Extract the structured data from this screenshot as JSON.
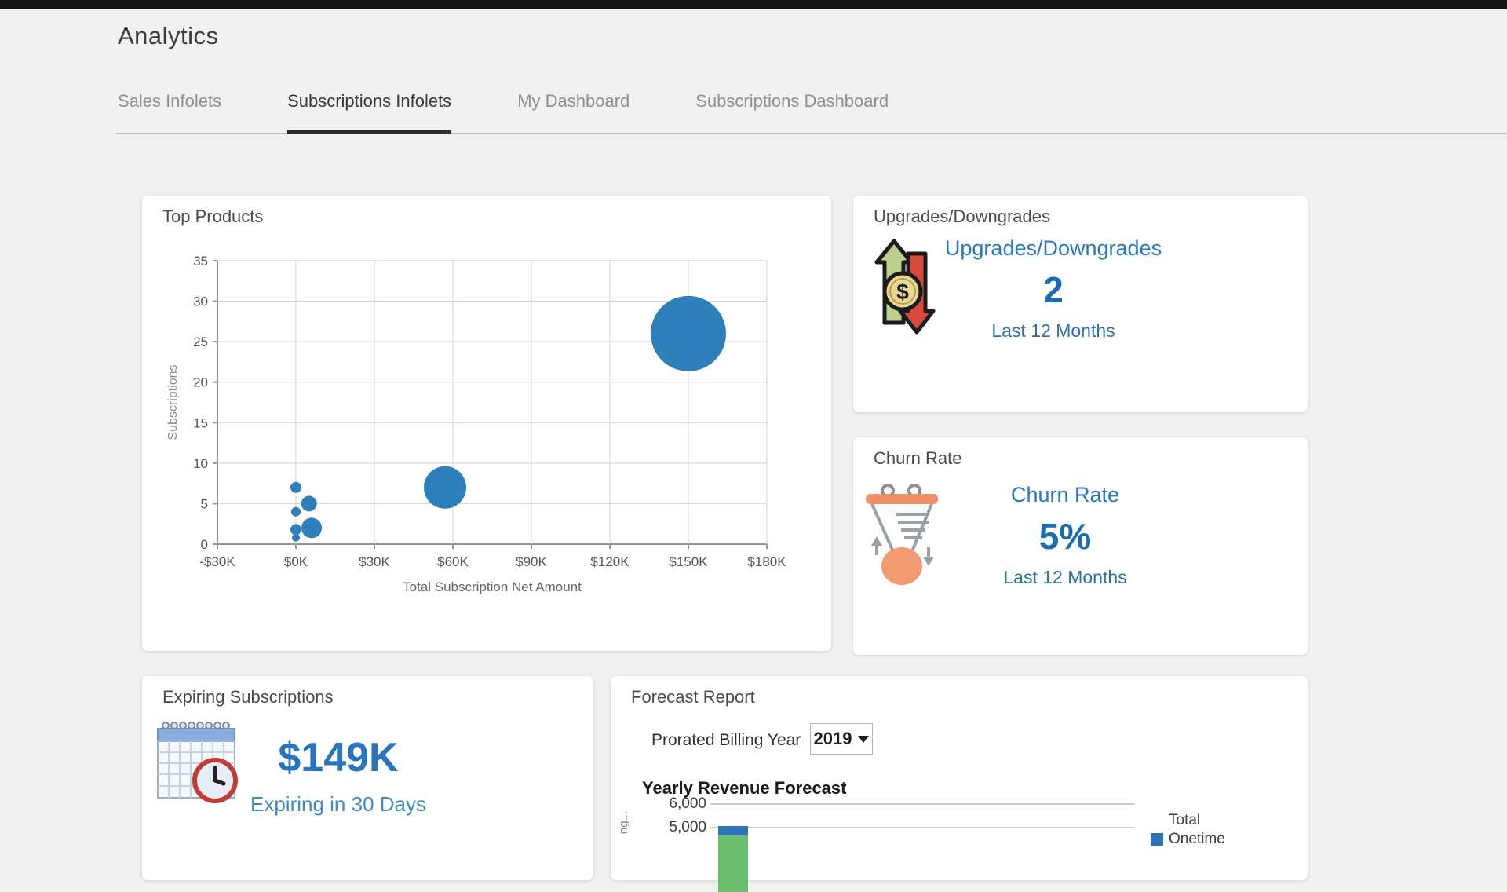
{
  "page": {
    "title": "Analytics"
  },
  "tabs": [
    {
      "label": "Sales Infolets",
      "active": false
    },
    {
      "label": "Subscriptions Infolets",
      "active": true
    },
    {
      "label": "My Dashboard",
      "active": false
    },
    {
      "label": "Subscriptions Dashboard",
      "active": false
    }
  ],
  "cards": {
    "top_products": {
      "title": "Top Products"
    },
    "upgrades_downgrades": {
      "title": "Upgrades/Downgrades",
      "link_label": "Upgrades/Downgrades",
      "value": "2",
      "period": "Last 12 Months"
    },
    "churn_rate": {
      "title": "Churn Rate",
      "link_label": "Churn Rate",
      "value": "5%",
      "period": "Last 12 Months"
    },
    "expiring_subscriptions": {
      "title": "Expiring Subscriptions",
      "value": "$149K",
      "subtitle": "Expiring in 30 Days"
    },
    "forecast_report": {
      "title": "Forecast Report",
      "filter_label": "Prorated Billing Year",
      "filter_value": "2019",
      "chart_title": "Yearly Revenue Forecast",
      "legend_line1": "Total",
      "legend_line2": "Onetime",
      "y_axis_label_partial": "ng..."
    }
  },
  "chart_data": [
    {
      "type": "scatter",
      "title": "Top Products",
      "xlabel": "Total Subscription Net Amount",
      "ylabel": "Subscriptions",
      "xlim": [
        -30000,
        180000
      ],
      "ylim": [
        0,
        35
      ],
      "xtick_labels": [
        "-$30K",
        "$0K",
        "$30K",
        "$60K",
        "$90K",
        "$120K",
        "$150K",
        "$180K"
      ],
      "ytick_values": [
        0,
        5,
        10,
        15,
        20,
        25,
        30,
        35
      ],
      "grid": true,
      "bubble_color": "#2e80ba",
      "points": [
        {
          "x": 150000,
          "y": 26,
          "r": 48
        },
        {
          "x": 57000,
          "y": 7,
          "r": 27
        },
        {
          "x": 0,
          "y": 7,
          "r": 7
        },
        {
          "x": 5000,
          "y": 5,
          "r": 10
        },
        {
          "x": 0,
          "y": 4,
          "r": 6
        },
        {
          "x": 6000,
          "y": 2,
          "r": 13
        },
        {
          "x": 0,
          "y": 1.8,
          "r": 7
        },
        {
          "x": 0,
          "y": 0.8,
          "r": 5
        }
      ]
    },
    {
      "type": "bar",
      "title": "Yearly Revenue Forecast",
      "yticks_visible": [
        "6,000",
        "5,000"
      ],
      "ytick_values": [
        6000,
        5000
      ],
      "legend": [
        {
          "label": "Total Onetime",
          "color": "#2e74b5"
        }
      ],
      "bars_visible": [
        {
          "top_value": 5000,
          "segments": [
            {
              "color": "#2e74b5",
              "value": 400
            },
            {
              "color": "#6cbd6e",
              "value": 2400
            }
          ],
          "note": "bar truncated by screenshot bottom edge"
        }
      ]
    }
  ],
  "colors": {
    "accent_link": "#2878bf",
    "value_blue": "#1d6cb1",
    "bubble": "#2e80ba",
    "bar_green": "#6cbd6e",
    "bar_blue": "#2e74b5"
  }
}
